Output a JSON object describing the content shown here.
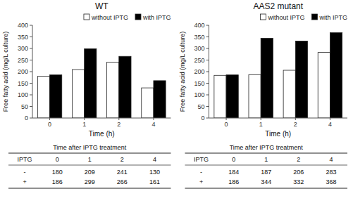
{
  "chart_data": [
    {
      "type": "bar",
      "title": "WT",
      "xlabel": "Time (h)",
      "ylabel": "Free fatty acid (mg/L culture)",
      "categories": [
        "0",
        "1",
        "2",
        "4"
      ],
      "series": [
        {
          "name": "without IPTG",
          "color": "white",
          "values": [
            180,
            209,
            241,
            130
          ]
        },
        {
          "name": "with IPTG",
          "color": "black",
          "values": [
            186,
            299,
            266,
            161
          ]
        }
      ],
      "ylim": [
        0,
        400
      ],
      "yticks": [
        0,
        50,
        100,
        150,
        200,
        250,
        300,
        350,
        400
      ],
      "grid": false,
      "legend": "upper-right"
    },
    {
      "type": "bar",
      "title": "AAS2 mutant",
      "xlabel": "Time (h)",
      "ylabel": "Free fatty acid (mg/L culture)",
      "categories": [
        "0",
        "1",
        "2",
        "4"
      ],
      "series": [
        {
          "name": "without IPTG",
          "color": "white",
          "values": [
            184,
            187,
            206,
            283
          ]
        },
        {
          "name": "with IPTG",
          "color": "black",
          "values": [
            186,
            344,
            332,
            368
          ]
        }
      ],
      "ylim": [
        0,
        400
      ],
      "yticks": [
        0,
        50,
        100,
        150,
        200,
        250,
        300,
        350,
        400
      ],
      "grid": false,
      "legend": "upper-right"
    },
    {
      "type": "table",
      "title": "Time after IPTG treatment",
      "columns": [
        "IPTG",
        "0",
        "1",
        "2",
        "4"
      ],
      "rows": [
        [
          "-",
          180,
          209,
          241,
          130
        ],
        [
          "+",
          186,
          299,
          266,
          161
        ]
      ]
    },
    {
      "type": "table",
      "title": "Time after IPTG treatment",
      "columns": [
        "IPTG",
        "0",
        "1",
        "2",
        "4"
      ],
      "rows": [
        [
          "-",
          184,
          187,
          206,
          283
        ],
        [
          "+",
          186,
          344,
          332,
          368
        ]
      ]
    }
  ]
}
